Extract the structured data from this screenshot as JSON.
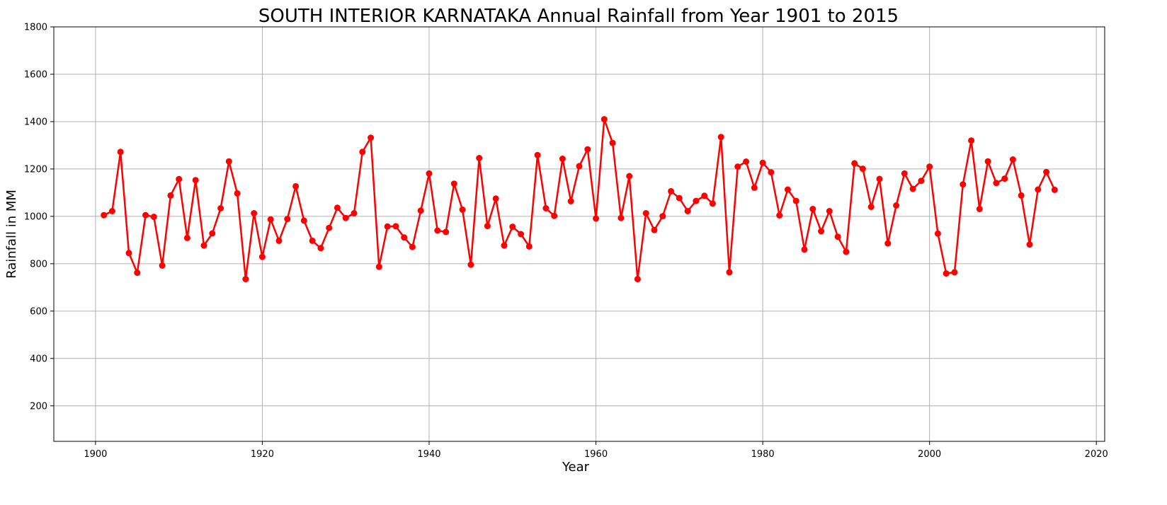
{
  "chart_data": {
    "type": "line",
    "title": "SOUTH INTERIOR KARNATAKA Annual Rainfall from Year 1901 to 2015",
    "xlabel": "Year",
    "ylabel": "Rainfall in MM",
    "xlim": [
      1895,
      2021
    ],
    "ylim": [
      50,
      1800
    ],
    "xticks": [
      1900,
      1920,
      1940,
      1960,
      1980,
      2000,
      2020
    ],
    "yticks": [
      200,
      400,
      600,
      800,
      1000,
      1200,
      1400,
      1600,
      1800
    ],
    "grid": true,
    "color": "#ff0000",
    "marker": "circle",
    "series": [
      {
        "x": [
          1901,
          1902,
          1903,
          1904,
          1905,
          1906,
          1907,
          1908,
          1909,
          1910,
          1911,
          1912,
          1913,
          1914,
          1915,
          1916,
          1917,
          1918,
          1919,
          1920,
          1921,
          1922,
          1923,
          1924,
          1925,
          1926,
          1927,
          1928,
          1929,
          1930,
          1931,
          1932,
          1933,
          1934,
          1935,
          1936,
          1937,
          1938,
          1939,
          1940,
          1941,
          1942,
          1943,
          1944,
          1945,
          1946,
          1947,
          1948,
          1949,
          1950,
          1951,
          1952,
          1953,
          1954,
          1955,
          1956,
          1957,
          1958,
          1959,
          1960,
          1961,
          1962,
          1963,
          1964,
          1965,
          1966,
          1967,
          1968,
          1969,
          1970,
          1971,
          1972,
          1973,
          1974,
          1975,
          1976,
          1977,
          1978,
          1979,
          1980,
          1981,
          1982,
          1983,
          1984,
          1985,
          1986,
          1987,
          1988,
          1989,
          1990,
          1991,
          1992,
          1993,
          1994,
          1995,
          1996,
          1997,
          1998,
          1999,
          2000,
          2001,
          2002,
          2003,
          2004,
          2005,
          2006,
          2007,
          2008,
          2009,
          2010,
          2011,
          2012,
          2013,
          2014,
          2015
        ],
        "y": [
          1005,
          1022,
          1272,
          845,
          762,
          1005,
          998,
          792,
          1088,
          1157,
          909,
          1153,
          877,
          928,
          1034,
          1232,
          1097,
          735,
          1013,
          829,
          987,
          897,
          989,
          1127,
          982,
          897,
          866,
          951,
          1036,
          993,
          1013,
          1272,
          1332,
          787,
          957,
          958,
          911,
          871,
          1024,
          1181,
          940,
          934,
          1138,
          1028,
          796,
          1246,
          959,
          1075,
          877,
          956,
          925,
          873,
          1259,
          1034,
          1002,
          1243,
          1064,
          1212,
          1283,
          991,
          1410,
          1310,
          993,
          1170,
          735,
          1013,
          942,
          1001,
          1106,
          1077,
          1022,
          1065,
          1087,
          1054,
          1335,
          764,
          1210,
          1231,
          1121,
          1226,
          1186,
          1004,
          1113,
          1065,
          860,
          1031,
          937,
          1022,
          914,
          850,
          1224,
          1201,
          1040,
          1158,
          886,
          1046,
          1181,
          1116,
          1150,
          1210,
          927,
          759,
          764,
          1135,
          1320,
          1031,
          1232,
          1141,
          1159,
          1240,
          1088,
          881,
          1113,
          1187,
          1112
        ]
      }
    ]
  }
}
